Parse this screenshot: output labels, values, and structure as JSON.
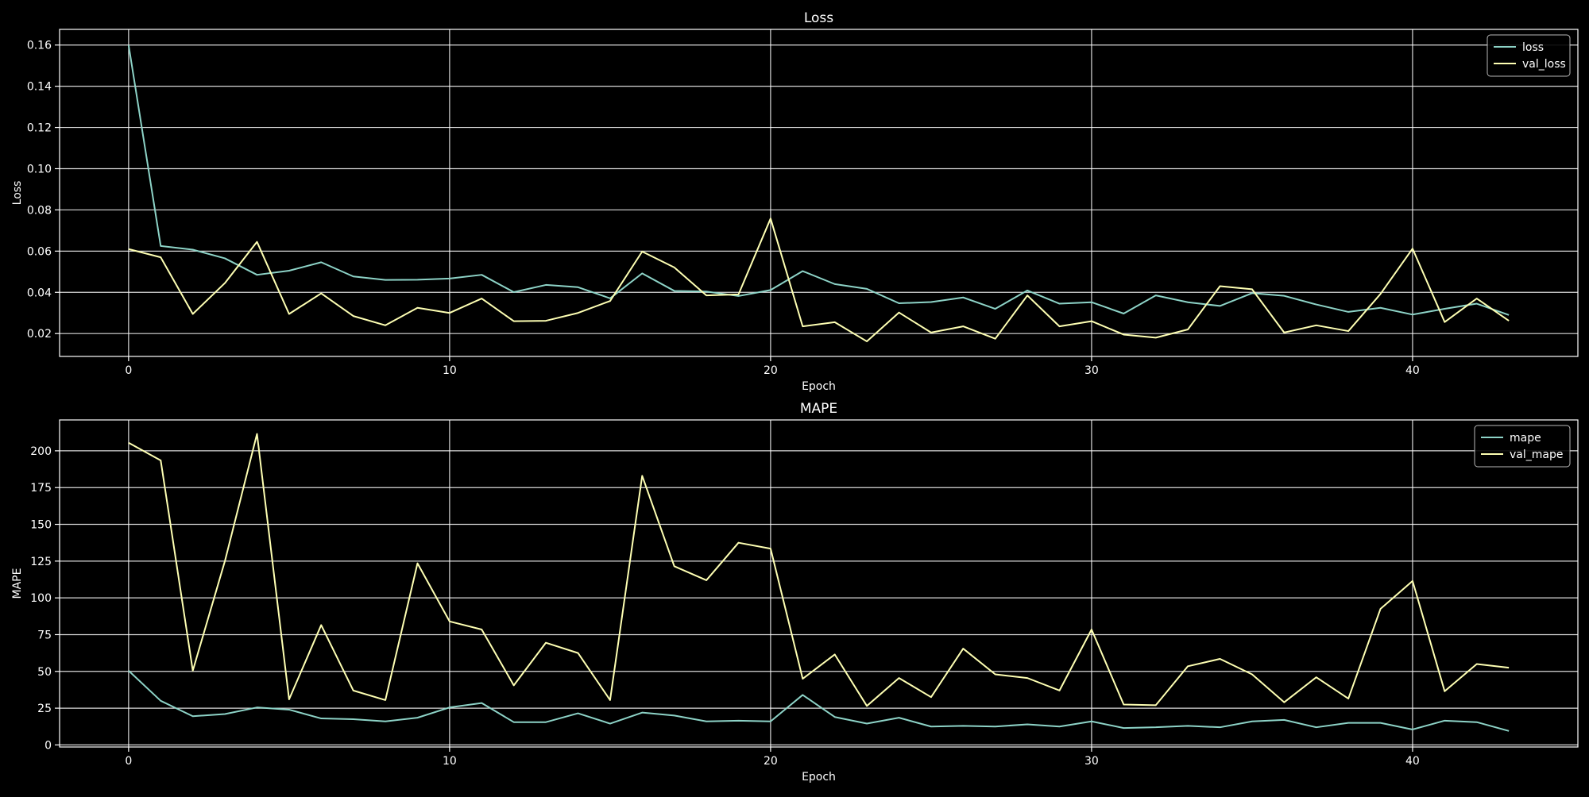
{
  "colors": {
    "background": "#000000",
    "axes": "#ffffff",
    "grid": "#ffffff",
    "series_train": "#8dd3c7",
    "series_val": "#feffb3"
  },
  "chart_data": [
    {
      "type": "line",
      "title": "Loss",
      "xlabel": "Epoch",
      "ylabel": "Loss",
      "xlim": [
        -2.15,
        45.15
      ],
      "ylim": [
        0.0089,
        0.1676
      ],
      "xticks": [
        0,
        10,
        20,
        30,
        40
      ],
      "yticks": [
        0.02,
        0.04,
        0.06,
        0.08,
        0.1,
        0.12,
        0.14,
        0.16
      ],
      "ytick_labels": [
        "0.02",
        "0.04",
        "0.06",
        "0.08",
        "0.10",
        "0.12",
        "0.14",
        "0.16"
      ],
      "grid": true,
      "legend": "top-right",
      "x": [
        0,
        1,
        2,
        3,
        4,
        5,
        6,
        7,
        8,
        9,
        10,
        11,
        12,
        13,
        14,
        15,
        16,
        17,
        18,
        19,
        20,
        21,
        22,
        23,
        24,
        25,
        26,
        27,
        28,
        29,
        30,
        31,
        32,
        33,
        34,
        35,
        36,
        37,
        38,
        39,
        40,
        41,
        42,
        43
      ],
      "series": [
        {
          "name": "loss",
          "values": [
            0.16,
            0.0625,
            0.0607,
            0.0565,
            0.0485,
            0.0505,
            0.0546,
            0.0477,
            0.046,
            0.0461,
            0.0467,
            0.0485,
            0.0401,
            0.0436,
            0.0425,
            0.0371,
            0.0492,
            0.0407,
            0.0404,
            0.0382,
            0.0411,
            0.0503,
            0.044,
            0.0417,
            0.0347,
            0.0353,
            0.0375,
            0.032,
            0.0409,
            0.0345,
            0.0352,
            0.0297,
            0.0385,
            0.0352,
            0.0334,
            0.0396,
            0.0383,
            0.0341,
            0.0305,
            0.0325,
            0.0292,
            0.032,
            0.0345,
            0.029
          ]
        },
        {
          "name": "val_loss",
          "values": [
            0.061,
            0.057,
            0.0295,
            0.0445,
            0.0645,
            0.0295,
            0.0395,
            0.0285,
            0.024,
            0.0325,
            0.03,
            0.037,
            0.026,
            0.0262,
            0.03,
            0.0358,
            0.0598,
            0.0521,
            0.0385,
            0.039,
            0.0758,
            0.0235,
            0.0255,
            0.0162,
            0.0302,
            0.0205,
            0.0235,
            0.0175,
            0.0385,
            0.0235,
            0.026,
            0.0195,
            0.018,
            0.022,
            0.043,
            0.0415,
            0.0205,
            0.024,
            0.0212,
            0.0392,
            0.0612,
            0.0256,
            0.037,
            0.0262
          ]
        }
      ]
    },
    {
      "type": "line",
      "title": "MAPE",
      "xlabel": "Epoch",
      "ylabel": "MAPE",
      "xlim": [
        -2.15,
        45.15
      ],
      "ylim": [
        -1.4,
        221.0
      ],
      "xticks": [
        0,
        10,
        20,
        30,
        40
      ],
      "yticks": [
        0,
        25,
        50,
        75,
        100,
        125,
        150,
        175,
        200
      ],
      "ytick_labels": [
        "0",
        "25",
        "50",
        "75",
        "100",
        "125",
        "150",
        "175",
        "200"
      ],
      "grid": true,
      "legend": "top-right",
      "x": [
        0,
        1,
        2,
        3,
        4,
        5,
        6,
        7,
        8,
        9,
        10,
        11,
        12,
        13,
        14,
        15,
        16,
        17,
        18,
        19,
        20,
        21,
        22,
        23,
        24,
        25,
        26,
        27,
        28,
        29,
        30,
        31,
        32,
        33,
        34,
        35,
        36,
        37,
        38,
        39,
        40,
        41,
        42,
        43
      ],
      "series": [
        {
          "name": "mape",
          "values": [
            50.5,
            30.0,
            19.5,
            21.0,
            25.5,
            24.0,
            18.0,
            17.5,
            16.0,
            18.5,
            25.5,
            28.5,
            15.5,
            15.5,
            21.5,
            14.5,
            22.0,
            20.0,
            16.0,
            16.5,
            16.0,
            34.0,
            19.0,
            14.5,
            18.5,
            12.5,
            13.0,
            12.5,
            14.0,
            12.5,
            16.0,
            11.5,
            12.0,
            13.0,
            12.0,
            16.0,
            17.0,
            12.0,
            15.0,
            15.0,
            10.5,
            16.5,
            15.5,
            9.5
          ]
        },
        {
          "name": "val_mape",
          "values": [
            205.5,
            193.5,
            50.5,
            125.0,
            211.5,
            31.0,
            81.5,
            37.0,
            30.5,
            123.5,
            84.0,
            78.5,
            40.5,
            69.5,
            62.5,
            30.5,
            183.0,
            121.5,
            112.0,
            137.5,
            133.5,
            45.0,
            61.5,
            26.5,
            45.5,
            32.5,
            65.5,
            48.0,
            45.5,
            37.0,
            78.5,
            27.5,
            27.0,
            53.5,
            58.5,
            48.0,
            29.0,
            46.0,
            31.5,
            92.5,
            111.5,
            36.5,
            55.0,
            52.5
          ]
        }
      ]
    }
  ]
}
